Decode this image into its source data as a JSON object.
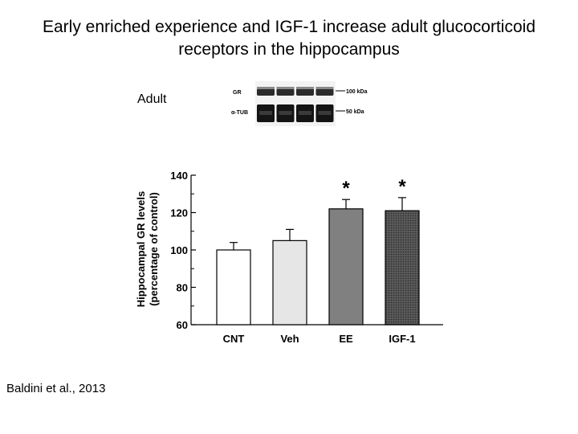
{
  "slide": {
    "title_line1": "Early enriched experience and IGF-1 increase adult glucocorticoid",
    "title_line2": "receptors in the hippocampus",
    "adult_label": "Adult",
    "citation": "Baldini et al., 2013"
  },
  "blot": {
    "row_labels": [
      "GR",
      "α-TUB"
    ],
    "marker_labels": [
      "100 kDa",
      "50 kDa"
    ],
    "lanes": 4
  },
  "chart_data": {
    "type": "bar",
    "title": "",
    "categories": [
      "CNT",
      "Veh",
      "EE",
      "IGF-1"
    ],
    "values": [
      100,
      105,
      122,
      121
    ],
    "errors": [
      4,
      6,
      5,
      7
    ],
    "significance": [
      "",
      "",
      "*",
      "*"
    ],
    "bar_fills": [
      "#ffffff",
      "#e6e6e6",
      "#808080",
      "#4a4a4a"
    ],
    "ylabel_line1": "Hippocampal GR levels",
    "ylabel_line2": "(percentage of control)",
    "xlabel": "",
    "ylim": [
      60,
      140
    ],
    "yticks": [
      60,
      80,
      100,
      120,
      140
    ],
    "grid": false
  }
}
